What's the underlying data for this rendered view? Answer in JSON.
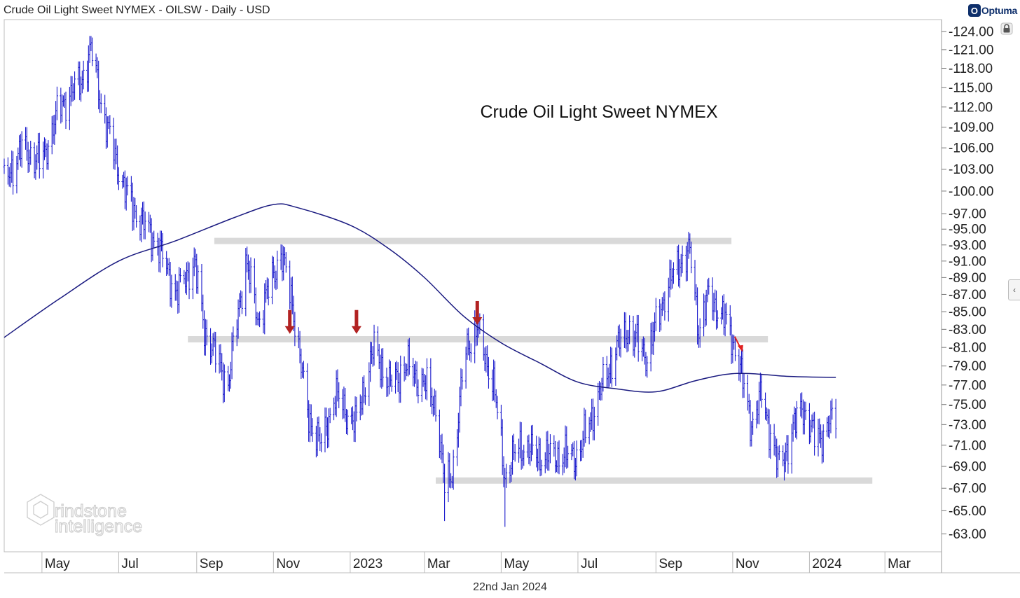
{
  "header": {
    "title": "Crude Oil Light Sweet NYMEX - OILSW - Daily - USD",
    "brand": "Optuma",
    "brand_badge": "O"
  },
  "footer": {
    "date": "22nd Jan 2024"
  },
  "watermark": {
    "line1": "rindstone",
    "line2": "intelligence"
  },
  "colors": {
    "price_bars": "#1a1acc",
    "moving_average": "#1a1a80",
    "levels": "#d9d9d9",
    "arrows_historic": "#b22222",
    "arrow_recent": "#e02020"
  },
  "chart_data": {
    "type": "ohlc-bar",
    "title": "Crude Oil Light Sweet NYMEX",
    "y_scale": "log",
    "ylim": [
      61.5,
      126
    ],
    "y_ticks": [
      124,
      121,
      118,
      115,
      112,
      109,
      106,
      103,
      100,
      97,
      95,
      93,
      91,
      89,
      87,
      85,
      83,
      81,
      79,
      77,
      75,
      73,
      71,
      69,
      67,
      65,
      63
    ],
    "x_labels": [
      {
        "label": "May",
        "date": "2022-05-01"
      },
      {
        "label": "Jul",
        "date": "2022-07-01"
      },
      {
        "label": "Sep",
        "date": "2022-09-01"
      },
      {
        "label": "Nov",
        "date": "2022-11-01"
      },
      {
        "label": "2023",
        "date": "2023-01-01"
      },
      {
        "label": "Mar",
        "date": "2023-03-01"
      },
      {
        "label": "May",
        "date": "2023-05-01"
      },
      {
        "label": "Jul",
        "date": "2023-07-01"
      },
      {
        "label": "Sep",
        "date": "2023-09-01"
      },
      {
        "label": "Nov",
        "date": "2023-11-01"
      },
      {
        "label": "2024",
        "date": "2024-01-01"
      },
      {
        "label": "Mar",
        "date": "2024-03-01"
      }
    ],
    "xlim": [
      "2022-04-01",
      "2024-04-15"
    ],
    "price_path": [
      [
        "2022-04-01",
        101
      ],
      [
        "2022-04-15",
        106
      ],
      [
        "2022-05-01",
        104
      ],
      [
        "2022-05-15",
        112
      ],
      [
        "2022-06-01",
        116
      ],
      [
        "2022-06-09",
        121
      ],
      [
        "2022-06-20",
        110
      ],
      [
        "2022-07-06",
        100
      ],
      [
        "2022-07-15",
        97
      ],
      [
        "2022-08-01",
        93
      ],
      [
        "2022-08-16",
        87
      ],
      [
        "2022-08-30",
        91
      ],
      [
        "2022-09-07",
        83
      ],
      [
        "2022-09-26",
        77
      ],
      [
        "2022-10-10",
        91
      ],
      [
        "2022-10-20",
        84
      ],
      [
        "2022-11-07",
        92
      ],
      [
        "2022-11-16",
        86
      ],
      [
        "2022-11-28",
        74
      ],
      [
        "2022-12-09",
        71
      ],
      [
        "2022-12-20",
        76
      ],
      [
        "2023-01-05",
        73
      ],
      [
        "2023-01-20",
        81
      ],
      [
        "2023-02-01",
        77
      ],
      [
        "2023-02-15",
        79
      ],
      [
        "2023-03-01",
        77
      ],
      [
        "2023-03-10",
        75
      ],
      [
        "2023-03-17",
        67
      ],
      [
        "2023-03-24",
        69
      ],
      [
        "2023-04-03",
        81
      ],
      [
        "2023-04-12",
        83
      ],
      [
        "2023-04-25",
        77
      ],
      [
        "2023-05-04",
        68
      ],
      [
        "2023-05-15",
        71
      ],
      [
        "2023-06-01",
        70
      ],
      [
        "2023-06-15",
        70
      ],
      [
        "2023-07-01",
        70
      ],
      [
        "2023-07-15",
        75
      ],
      [
        "2023-08-01",
        81
      ],
      [
        "2023-08-10",
        83
      ],
      [
        "2023-08-25",
        80
      ],
      [
        "2023-09-08",
        87
      ],
      [
        "2023-09-20",
        91
      ],
      [
        "2023-09-28",
        92
      ],
      [
        "2023-10-05",
        83
      ],
      [
        "2023-10-13",
        87
      ],
      [
        "2023-10-26",
        84
      ],
      [
        "2023-11-03",
        81
      ],
      [
        "2023-11-16",
        73
      ],
      [
        "2023-11-24",
        76
      ],
      [
        "2023-12-07",
        69
      ],
      [
        "2023-12-15",
        71
      ],
      [
        "2023-12-26",
        75
      ],
      [
        "2024-01-04",
        72
      ],
      [
        "2024-01-12",
        72
      ],
      [
        "2024-01-22",
        74
      ]
    ],
    "lows": [
      {
        "date": "2023-03-17",
        "value": 64.1
      },
      {
        "date": "2023-05-04",
        "value": 63.6
      },
      {
        "date": "2023-12-12",
        "value": 67.7
      }
    ],
    "moving_average": {
      "path": [
        [
          "2022-04-01",
          82.1
        ],
        [
          "2022-05-15",
          86.5
        ],
        [
          "2022-07-01",
          91.0
        ],
        [
          "2022-08-15",
          93.5
        ],
        [
          "2022-10-01",
          96.5
        ],
        [
          "2022-11-01",
          98.2
        ],
        [
          "2022-11-20",
          97.8
        ],
        [
          "2023-01-01",
          95.5
        ],
        [
          "2023-02-01",
          92.5
        ],
        [
          "2023-03-01",
          89.0
        ],
        [
          "2023-04-01",
          84.5
        ],
        [
          "2023-05-01",
          81.5
        ],
        [
          "2023-06-01",
          79.3
        ],
        [
          "2023-07-01",
          77.3
        ],
        [
          "2023-08-01",
          76.6
        ],
        [
          "2023-09-01",
          76.3
        ],
        [
          "2023-10-01",
          77.4
        ],
        [
          "2023-10-26",
          78.1
        ],
        [
          "2023-11-15",
          78.2
        ],
        [
          "2023-12-15",
          77.9
        ],
        [
          "2024-01-22",
          77.8
        ]
      ]
    },
    "levels": [
      {
        "value": 93.5,
        "start": "2022-09-15",
        "end": "2023-10-31"
      },
      {
        "value": 81.9,
        "start": "2022-08-25",
        "end": "2023-11-29"
      },
      {
        "value": 67.7,
        "start": "2023-03-10",
        "end": "2024-02-20"
      }
    ],
    "arrows": [
      {
        "date": "2022-11-14",
        "value": 82.5,
        "color": "historic"
      },
      {
        "date": "2023-01-06",
        "value": 82.5,
        "color": "historic"
      },
      {
        "date": "2023-04-12",
        "value": 83.5,
        "color": "historic"
      },
      {
        "date": "2023-11-06",
        "value": 80.5,
        "color": "recent"
      }
    ]
  }
}
